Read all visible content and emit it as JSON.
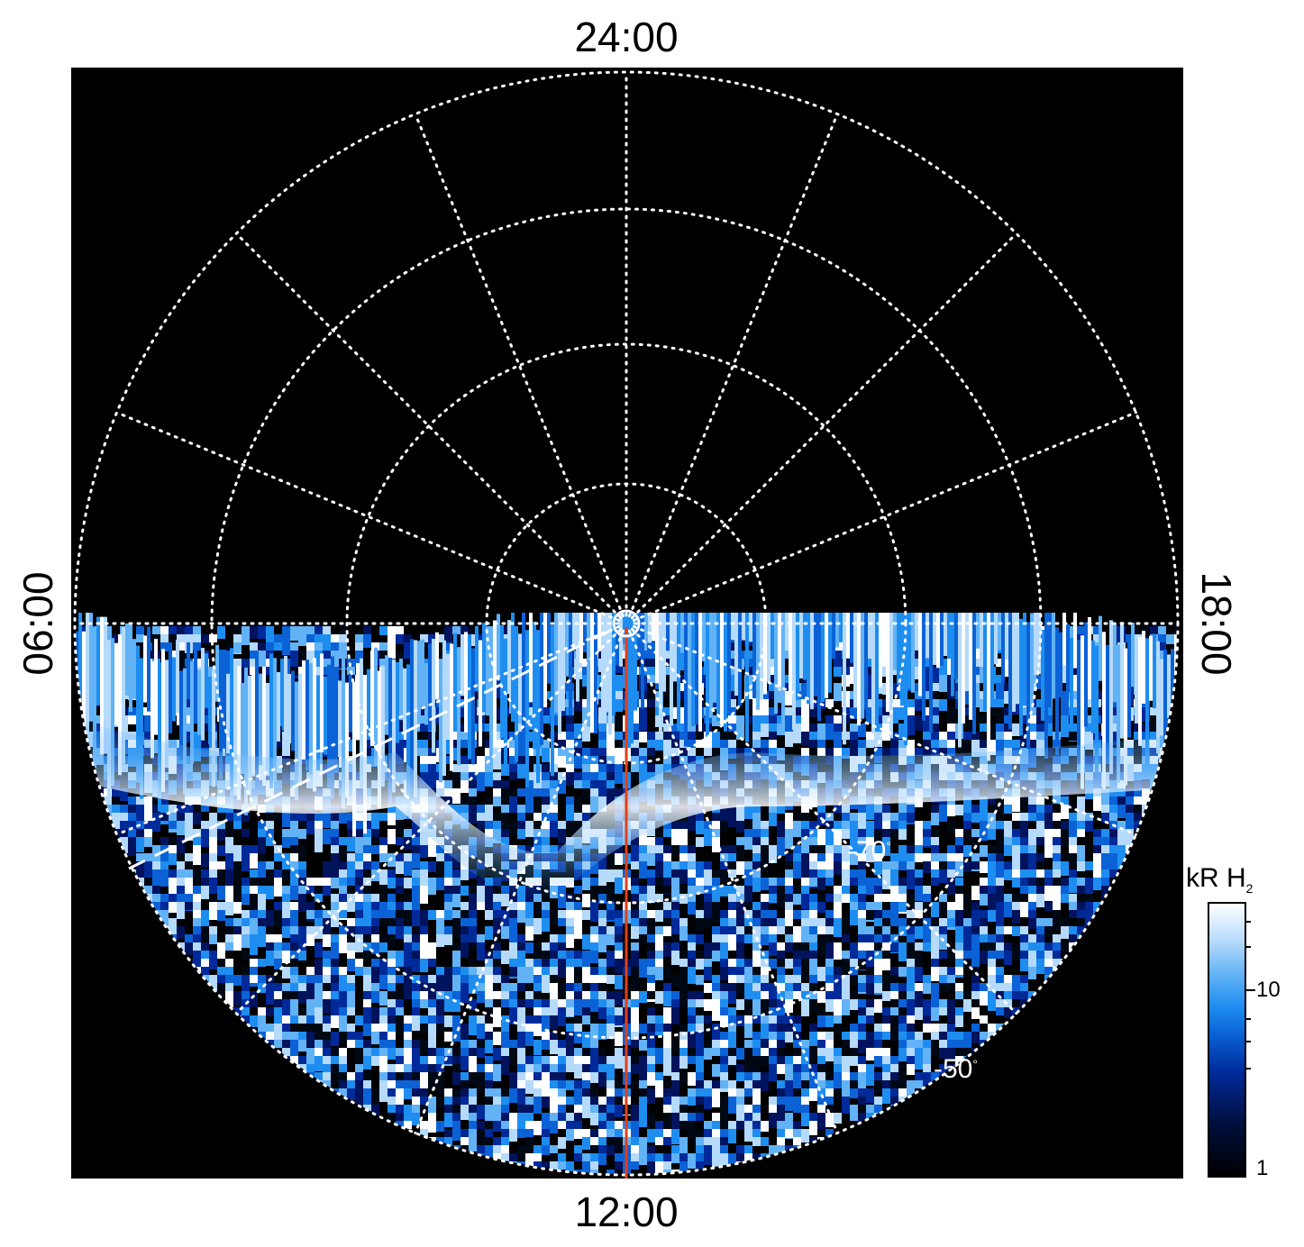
{
  "local_time_labels": {
    "top": "24:00",
    "bottom": "12:00",
    "left": "06:00",
    "right": "18:00"
  },
  "latitude_labels": {
    "inner": "-70",
    "outer": "-50",
    "degree_symbol": "°"
  },
  "colorbar": {
    "title": "kR H",
    "title_subscript": "2",
    "tick_10": "10",
    "tick_1": "1",
    "scale": "log",
    "range": [
      1,
      30
    ]
  },
  "colors": {
    "plot_background": "#000000",
    "grid": "#ffffff",
    "meridian_line": "#e0401a",
    "emission_dark": "#001a66",
    "emission_mid": "#1e8df0",
    "emission_bright": "#ffffff"
  },
  "grid": {
    "meridian_step_hours": 1.5,
    "latitude_circles_deg": [
      -80,
      -70,
      -60,
      -50,
      -40
    ]
  },
  "orientation": {
    "top": "24:00",
    "bottom": "12:00",
    "left": "06:00",
    "right": "18:00"
  }
}
